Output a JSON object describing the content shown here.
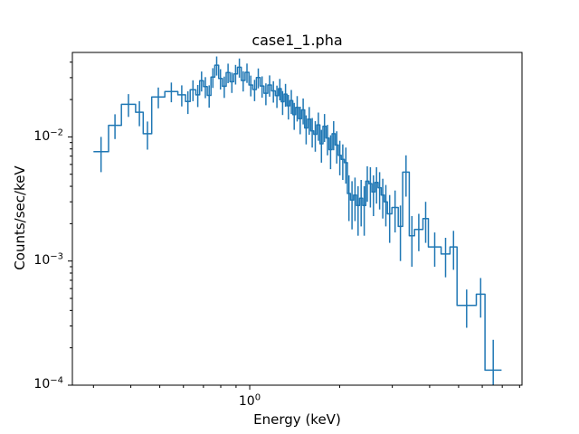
{
  "figure": {
    "title": "case1_1.pha",
    "background": "#ffffff",
    "foreground": "#000000"
  },
  "axes": {
    "x": {
      "label": "Energy (keV)",
      "scale": "log",
      "ticks": [
        {
          "base": "10",
          "exp": "0",
          "value": 1
        }
      ]
    },
    "y": {
      "label": "Counts/sec/keV",
      "scale": "log",
      "ticks": [
        {
          "base": "10",
          "exp": "−2",
          "value": 0.01
        },
        {
          "base": "10",
          "exp": "−3",
          "value": 0.001
        },
        {
          "base": "10",
          "exp": "−4",
          "value": 0.0001
        }
      ]
    }
  },
  "chart_data": {
    "type": "line",
    "style": "histogram-steps-with-errorbars",
    "title": "case1_1.pha",
    "xlabel": "Energy (keV)",
    "ylabel": "Counts/sec/keV",
    "xscale": "log",
    "yscale": "log",
    "xlim": [
      0.255,
      8.15
    ],
    "ylim": [
      0.0001,
      0.0479
    ],
    "grid": false,
    "legend": "none",
    "series": [
      {
        "name": "case1_1.pha",
        "color": "#1f77b4",
        "linewidth": 1.5,
        "bins_format": [
          "e_lo_keV",
          "e_hi_keV",
          "counts_per_sec_per_keV",
          "error"
        ],
        "bins": [
          [
            0.3,
            0.337,
            0.0076,
            0.0024
          ],
          [
            0.337,
            0.372,
            0.0124,
            0.0028
          ],
          [
            0.372,
            0.415,
            0.0183,
            0.0038
          ],
          [
            0.415,
            0.44,
            0.0158,
            0.0036
          ],
          [
            0.44,
            0.47,
            0.0106,
            0.0027
          ],
          [
            0.47,
            0.52,
            0.021,
            0.004
          ],
          [
            0.52,
            0.575,
            0.0232,
            0.0042
          ],
          [
            0.575,
            0.61,
            0.0218,
            0.0042
          ],
          [
            0.61,
            0.632,
            0.0193,
            0.004
          ],
          [
            0.632,
            0.66,
            0.024,
            0.0046
          ],
          [
            0.66,
            0.68,
            0.0218,
            0.0044
          ],
          [
            0.68,
            0.7,
            0.0284,
            0.0052
          ],
          [
            0.7,
            0.721,
            0.0254,
            0.0049
          ],
          [
            0.721,
            0.742,
            0.0216,
            0.0044
          ],
          [
            0.742,
            0.764,
            0.0303,
            0.0055
          ],
          [
            0.764,
            0.787,
            0.0378,
            0.0066
          ],
          [
            0.787,
            0.81,
            0.0296,
            0.0055
          ],
          [
            0.81,
            0.834,
            0.0256,
            0.005
          ],
          [
            0.834,
            0.859,
            0.033,
            0.0059
          ],
          [
            0.859,
            0.884,
            0.0278,
            0.0052
          ],
          [
            0.884,
            0.91,
            0.0322,
            0.0058
          ],
          [
            0.91,
            0.937,
            0.0364,
            0.0064
          ],
          [
            0.937,
            0.965,
            0.0285,
            0.0053
          ],
          [
            0.965,
            0.994,
            0.0331,
            0.0059
          ],
          [
            0.994,
            1.023,
            0.0262,
            0.005
          ],
          [
            1.023,
            1.053,
            0.0241,
            0.0047
          ],
          [
            1.053,
            1.084,
            0.0301,
            0.0055
          ],
          [
            1.084,
            1.116,
            0.0257,
            0.005
          ],
          [
            1.116,
            1.149,
            0.0225,
            0.0045
          ],
          [
            1.149,
            1.183,
            0.0262,
            0.0051
          ],
          [
            1.183,
            1.218,
            0.0235,
            0.0046
          ],
          [
            1.218,
            1.248,
            0.0215,
            0.0044
          ],
          [
            1.248,
            1.275,
            0.0245,
            0.0048
          ],
          [
            1.275,
            1.303,
            0.0192,
            0.0042
          ],
          [
            1.303,
            1.332,
            0.0221,
            0.0046
          ],
          [
            1.332,
            1.362,
            0.0178,
            0.004
          ],
          [
            1.362,
            1.393,
            0.0196,
            0.0043
          ],
          [
            1.393,
            1.425,
            0.0151,
            0.0037
          ],
          [
            1.425,
            1.458,
            0.0173,
            0.004
          ],
          [
            1.458,
            1.492,
            0.014,
            0.0035
          ],
          [
            1.492,
            1.527,
            0.0165,
            0.0039
          ],
          [
            1.527,
            1.563,
            0.0118,
            0.0031
          ],
          [
            1.563,
            1.6,
            0.0139,
            0.0035
          ],
          [
            1.6,
            1.638,
            0.0112,
            0.003
          ],
          [
            1.638,
            1.677,
            0.0105,
            0.0029
          ],
          [
            1.677,
            1.717,
            0.0125,
            0.0032
          ],
          [
            1.717,
            1.758,
            0.0088,
            0.0026
          ],
          [
            1.758,
            1.8,
            0.0122,
            0.0031
          ],
          [
            1.8,
            1.843,
            0.0098,
            0.0027
          ],
          [
            1.843,
            1.887,
            0.0079,
            0.0024
          ],
          [
            1.887,
            1.932,
            0.0106,
            0.0028
          ],
          [
            1.932,
            1.978,
            0.0086,
            0.0025
          ],
          [
            1.978,
            2.025,
            0.0071,
            0.0022
          ],
          [
            2.025,
            2.073,
            0.0066,
            0.0021
          ],
          [
            2.073,
            2.122,
            0.0062,
            0.002
          ],
          [
            2.122,
            2.173,
            0.0035,
            0.0014
          ],
          [
            2.173,
            2.225,
            0.0031,
            0.0013
          ],
          [
            2.225,
            2.278,
            0.0034,
            0.0013
          ],
          [
            2.278,
            2.332,
            0.0028,
            0.0012
          ],
          [
            2.332,
            2.388,
            0.0032,
            0.0013
          ],
          [
            2.388,
            2.445,
            0.0028,
            0.0012
          ],
          [
            2.445,
            2.504,
            0.0044,
            0.0014
          ],
          [
            2.504,
            2.564,
            0.0042,
            0.0015
          ],
          [
            2.564,
            2.626,
            0.0036,
            0.0013
          ],
          [
            2.626,
            2.689,
            0.0043,
            0.0014
          ],
          [
            2.689,
            2.754,
            0.0039,
            0.0013
          ],
          [
            2.754,
            2.82,
            0.0034,
            0.0012
          ],
          [
            2.82,
            2.888,
            0.003,
            0.0011
          ],
          [
            2.888,
            2.99,
            0.0024,
            0.001
          ],
          [
            2.99,
            3.14,
            0.0027,
            0.001
          ],
          [
            3.14,
            3.25,
            0.0019,
            0.0009
          ],
          [
            3.25,
            3.42,
            0.0052,
            0.0019
          ],
          [
            3.42,
            3.56,
            0.0016,
            0.0007
          ],
          [
            3.56,
            3.8,
            0.0018,
            0.0006
          ],
          [
            3.8,
            3.96,
            0.0022,
            0.0008
          ],
          [
            3.96,
            4.37,
            0.0013,
            0.0004
          ],
          [
            4.37,
            4.68,
            0.00114,
            0.0004
          ],
          [
            4.68,
            4.94,
            0.0013,
            0.00045
          ],
          [
            4.94,
            5.73,
            0.00044,
            0.00015
          ],
          [
            5.73,
            6.13,
            0.00054,
            0.00019
          ],
          [
            6.13,
            6.96,
            0.000132,
            0.0001
          ]
        ]
      }
    ]
  }
}
